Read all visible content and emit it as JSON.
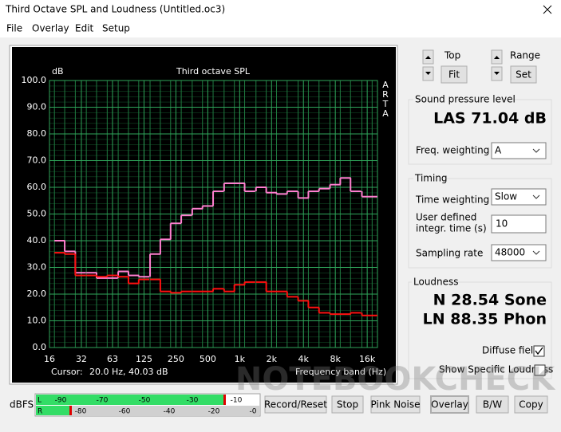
{
  "window": {
    "title": "Third Octave SPL and Loudness (Untitled.oc3)"
  },
  "menu": [
    "File",
    "Overlay",
    "Edit",
    "Setup"
  ],
  "chart_data": {
    "type": "line",
    "title": "Third octave SPL",
    "y_label": "dB",
    "x_label": "Frequency band (Hz)",
    "side_label": [
      "A",
      "R",
      "T",
      "A"
    ],
    "cursor_label": "Cursor:",
    "cursor_value": "20.0 Hz, 40.03 dB",
    "x": [
      20,
      25,
      31.5,
      40,
      50,
      63,
      80,
      100,
      125,
      160,
      200,
      250,
      315,
      400,
      500,
      630,
      800,
      1000,
      1250,
      1600,
      2000,
      2500,
      3150,
      4000,
      5000,
      6300,
      8000,
      10000,
      12500,
      16000,
      20000
    ],
    "series": [
      {
        "color": "#ff80d0",
        "values": [
          40,
          36,
          28,
          28,
          26,
          26,
          28.5,
          27,
          26.5,
          35,
          40.5,
          46.5,
          49.5,
          52,
          53,
          58.5,
          61.5,
          61.5,
          58.5,
          60,
          58,
          57.5,
          58.5,
          56,
          58.5,
          59.5,
          61,
          63.5,
          58.5,
          56.5,
          56.5
        ]
      },
      {
        "color": "#ff1010",
        "values": [
          35.5,
          35,
          27,
          27,
          26.5,
          27,
          26.5,
          24,
          25.5,
          25.5,
          21,
          20.5,
          21,
          21,
          21,
          22,
          21,
          23.5,
          24.5,
          24.5,
          21,
          21,
          19,
          17.5,
          15,
          13,
          12.5,
          12.5,
          13,
          12,
          12
        ]
      }
    ],
    "xlim": [
      16,
      20000
    ],
    "log_x": true,
    "ylim": [
      0,
      100
    ],
    "xticks": [
      16,
      32,
      63,
      125,
      250,
      500,
      {
        "value": 1000,
        "label": "1k"
      },
      {
        "value": 2000,
        "label": "2k"
      },
      {
        "value": 4000,
        "label": "4k"
      },
      {
        "value": 8000,
        "label": "8k"
      },
      {
        "value": 16000,
        "label": "16k"
      }
    ],
    "yticks": [
      {
        "value": 0,
        "label": "0.0"
      },
      {
        "value": 10,
        "label": "10.0"
      },
      {
        "value": 20,
        "label": "20.0"
      },
      {
        "value": 30,
        "label": "30.0"
      },
      {
        "value": 40,
        "label": "40.0"
      },
      {
        "value": 50,
        "label": "50.0"
      },
      {
        "value": 60,
        "label": "60.0"
      },
      {
        "value": 70,
        "label": "70.0"
      },
      {
        "value": 80,
        "label": "80.0"
      },
      {
        "value": 90,
        "label": "90.0"
      },
      {
        "value": 100,
        "label": "100.0"
      }
    ],
    "grid": true
  },
  "controls": {
    "top": "Top",
    "fit": "Fit",
    "range": "Range",
    "set": "Set"
  },
  "spl": {
    "group": "Sound pressure level",
    "reading": "LAS 71.04 dB",
    "weighting_label": "Freq. weighting",
    "weighting": "A"
  },
  "timing": {
    "group": "Timing",
    "time_weighting_label": "Time weighting",
    "time_weighting": "Slow",
    "integr_label": [
      "User defined",
      "integr. time (s)"
    ],
    "integr_time": "10",
    "sampling_label": "Sampling rate",
    "sampling": "48000"
  },
  "loudness": {
    "group": "Loudness",
    "n": "N 28.54 Sone",
    "ln": "LN 88.35 Phon",
    "diffuse": "Diffuse field",
    "specific": "Show Specific Loudness"
  },
  "meter": {
    "label": "dBFS",
    "left": "L",
    "right": "R",
    "left_scale": [
      "-90",
      "-70",
      "-50",
      "-30",
      "-10"
    ],
    "right_scale": [
      "-80",
      "-60",
      "-40",
      "-20",
      "-0"
    ]
  },
  "buttons": [
    "Record/Reset",
    "Stop",
    "Pink Noise",
    "Overlay",
    "B/W",
    "Copy"
  ],
  "watermark": "NOTEBOOKCHECK"
}
